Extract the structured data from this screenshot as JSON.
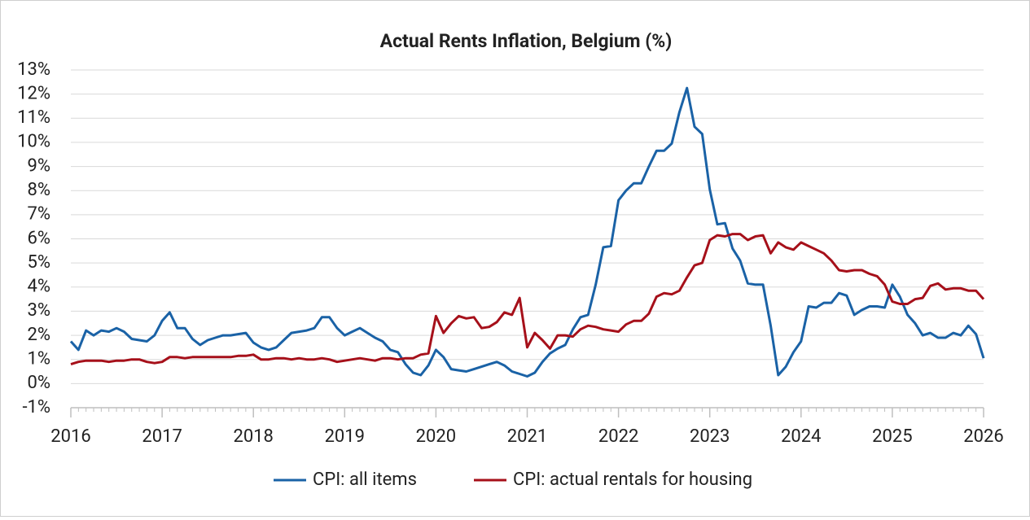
{
  "chart_data": {
    "type": "line",
    "title": "Actual Rents Inflation, Belgium (%)",
    "x": [
      2016,
      2016.083,
      2016.167,
      2016.25,
      2016.333,
      2016.417,
      2016.5,
      2016.583,
      2016.667,
      2016.75,
      2016.833,
      2016.917,
      2017,
      2017.083,
      2017.167,
      2017.25,
      2017.333,
      2017.417,
      2017.5,
      2017.583,
      2017.667,
      2017.75,
      2017.833,
      2017.917,
      2018,
      2018.083,
      2018.167,
      2018.25,
      2018.333,
      2018.417,
      2018.5,
      2018.583,
      2018.667,
      2018.75,
      2018.833,
      2018.917,
      2019,
      2019.083,
      2019.167,
      2019.25,
      2019.333,
      2019.417,
      2019.5,
      2019.583,
      2019.667,
      2019.75,
      2019.833,
      2019.917,
      2020,
      2020.083,
      2020.167,
      2020.25,
      2020.333,
      2020.417,
      2020.5,
      2020.583,
      2020.667,
      2020.75,
      2020.833,
      2020.917,
      2021,
      2021.083,
      2021.167,
      2021.25,
      2021.333,
      2021.417,
      2021.5,
      2021.583,
      2021.667,
      2021.75,
      2021.833,
      2021.917,
      2022,
      2022.083,
      2022.167,
      2022.25,
      2022.333,
      2022.417,
      2022.5,
      2022.583,
      2022.667,
      2022.75,
      2022.833,
      2022.917,
      2023,
      2023.083,
      2023.167,
      2023.25,
      2023.333,
      2023.417,
      2023.5,
      2023.583,
      2023.667,
      2023.75,
      2023.833,
      2023.917,
      2024,
      2024.083,
      2024.167,
      2024.25,
      2024.333,
      2024.417,
      2024.5,
      2024.583,
      2024.667,
      2024.75,
      2024.833,
      2024.917,
      2025,
      2025.083,
      2025.167,
      2025.25,
      2025.333,
      2025.417,
      2025.5,
      2025.583,
      2025.667,
      2025.75,
      2025.833,
      2025.917,
      2026
    ],
    "series": [
      {
        "name": "CPI: all items",
        "color": "#1a62a6",
        "values": [
          1.75,
          1.4,
          2.2,
          2.0,
          2.2,
          2.15,
          2.3,
          2.15,
          1.85,
          1.8,
          1.75,
          2.0,
          2.6,
          2.95,
          2.3,
          2.3,
          1.85,
          1.6,
          1.8,
          1.9,
          2.0,
          2.0,
          2.05,
          2.1,
          1.7,
          1.5,
          1.4,
          1.5,
          1.8,
          2.1,
          2.15,
          2.2,
          2.3,
          2.75,
          2.75,
          2.3,
          2.0,
          2.15,
          2.3,
          2.1,
          1.9,
          1.75,
          1.4,
          1.3,
          0.8,
          0.45,
          0.35,
          0.75,
          1.4,
          1.1,
          0.6,
          0.55,
          0.5,
          0.6,
          0.7,
          0.8,
          0.9,
          0.75,
          0.5,
          0.4,
          0.3,
          0.45,
          0.9,
          1.25,
          1.45,
          1.6,
          2.25,
          2.75,
          2.85,
          4.1,
          5.65,
          5.7,
          7.6,
          8.0,
          8.3,
          8.3,
          9.0,
          9.65,
          9.65,
          9.95,
          11.25,
          12.25,
          10.65,
          10.35,
          8.05,
          6.6,
          6.65,
          5.6,
          5.1,
          4.15,
          4.1,
          4.1,
          2.4,
          0.35,
          0.7,
          1.3,
          1.75,
          3.2,
          3.15,
          3.35,
          3.35,
          3.75,
          3.65,
          2.85,
          3.05,
          3.2,
          3.2,
          3.15,
          4.1,
          3.6,
          2.85,
          2.5,
          2.0,
          2.1,
          1.9,
          1.9,
          2.1,
          2.0,
          2.4,
          2.05,
          1.05
        ]
      },
      {
        "name": "CPI: actual rentals for housing",
        "color": "#a6101a",
        "values": [
          0.8,
          0.9,
          0.95,
          0.95,
          0.95,
          0.9,
          0.95,
          0.95,
          1.0,
          1.0,
          0.9,
          0.85,
          0.9,
          1.1,
          1.1,
          1.05,
          1.1,
          1.1,
          1.1,
          1.1,
          1.1,
          1.1,
          1.15,
          1.15,
          1.2,
          1.0,
          1.0,
          1.05,
          1.05,
          1.0,
          1.05,
          1.0,
          1.0,
          1.05,
          1.0,
          0.9,
          0.95,
          1.0,
          1.05,
          1.0,
          0.95,
          1.05,
          1.05,
          1.0,
          1.05,
          1.05,
          1.2,
          1.25,
          2.8,
          2.1,
          2.5,
          2.8,
          2.7,
          2.75,
          2.3,
          2.35,
          2.55,
          2.95,
          2.85,
          3.55,
          1.5,
          2.1,
          1.8,
          1.45,
          2.0,
          2.0,
          1.95,
          2.25,
          2.4,
          2.35,
          2.25,
          2.2,
          2.15,
          2.45,
          2.6,
          2.6,
          2.9,
          3.6,
          3.75,
          3.7,
          3.85,
          4.4,
          4.9,
          5.0,
          5.95,
          6.15,
          6.1,
          6.2,
          6.2,
          5.95,
          6.1,
          6.15,
          5.4,
          5.85,
          5.65,
          5.55,
          5.85,
          5.7,
          5.55,
          5.4,
          5.1,
          4.7,
          4.65,
          4.7,
          4.7,
          4.55,
          4.45,
          4.1,
          3.4,
          3.3,
          3.3,
          3.5,
          3.55,
          4.05,
          4.15,
          3.9,
          3.95,
          3.95,
          3.85,
          3.85,
          3.5
        ]
      }
    ],
    "xlim": [
      2016,
      2026
    ],
    "xticks": [
      2016,
      2017,
      2018,
      2019,
      2020,
      2021,
      2022,
      2023,
      2024,
      2025,
      2026
    ],
    "ylim": [
      -1,
      13
    ],
    "yticks": [
      {
        "value": -1,
        "label": "-1%"
      },
      {
        "value": 0,
        "label": "0%"
      },
      {
        "value": 1,
        "label": "1%"
      },
      {
        "value": 2,
        "label": "2%"
      },
      {
        "value": 3,
        "label": "3%"
      },
      {
        "value": 4,
        "label": "4%"
      },
      {
        "value": 5,
        "label": "5%"
      },
      {
        "value": 6,
        "label": "6%"
      },
      {
        "value": 7,
        "label": "7%"
      },
      {
        "value": 8,
        "label": "8%"
      },
      {
        "value": 9,
        "label": "9%"
      },
      {
        "value": 10,
        "label": "10%"
      },
      {
        "value": 11,
        "label": "11%"
      },
      {
        "value": 12,
        "label": "12%"
      },
      {
        "value": 13,
        "label": "13%"
      }
    ],
    "grid": true,
    "legend": "bottom"
  }
}
